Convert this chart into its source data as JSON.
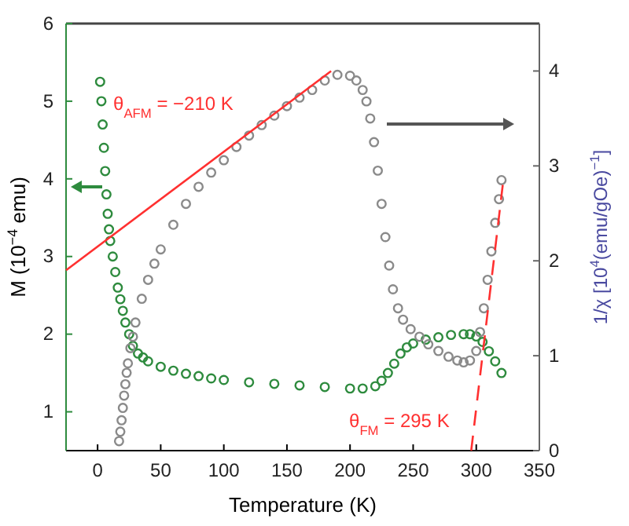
{
  "chart_data": {
    "type": "scatter",
    "xlabel": "Temperature (K)",
    "ylabel": "M (10$^{−4}$ emu)",
    "y2label": "1/χ [10$^{4}$(emu/gOe)$^{−1}$]",
    "xlim": [
      -25,
      350
    ],
    "xticks": [
      0,
      50,
      100,
      150,
      200,
      250,
      300,
      350
    ],
    "ylim": [
      0.5,
      6
    ],
    "yticks": [
      1,
      2,
      3,
      4,
      5,
      6
    ],
    "y2lim": [
      0,
      4.5
    ],
    "y2ticks": [
      0,
      1,
      2,
      3,
      4
    ],
    "marker": "circle",
    "grid": false,
    "annotations": [
      "θ$_{AFM}$ = −210 K",
      "θ$_{FM}$ = 295 K"
    ],
    "series": [
      {
        "color": "#2e8b3e",
        "x": [
          2,
          3,
          4,
          5,
          6,
          7,
          8,
          9,
          10,
          12,
          14,
          16,
          18,
          20,
          22,
          25,
          28,
          32,
          36,
          40,
          50,
          60,
          70,
          80,
          90,
          100,
          120,
          140,
          160,
          180,
          200,
          210,
          220,
          225,
          230,
          235,
          240,
          245,
          250,
          260,
          270,
          280,
          290,
          295,
          300,
          305,
          310,
          315,
          320
        ],
        "values": [
          5.25,
          5.0,
          4.7,
          4.4,
          4.1,
          3.8,
          3.55,
          3.35,
          3.2,
          3.0,
          2.8,
          2.6,
          2.45,
          2.3,
          2.15,
          2.0,
          1.85,
          1.75,
          1.7,
          1.65,
          1.58,
          1.53,
          1.49,
          1.46,
          1.43,
          1.41,
          1.38,
          1.36,
          1.34,
          1.32,
          1.3,
          1.3,
          1.33,
          1.4,
          1.5,
          1.62,
          1.75,
          1.83,
          1.88,
          1.93,
          1.96,
          1.99,
          2.0,
          2.0,
          1.97,
          1.9,
          1.78,
          1.65,
          1.5
        ]
      },
      {
        "color": "#8a8a8a",
        "axis": "y2",
        "x": [
          17,
          18,
          19,
          20,
          21,
          22,
          23,
          24,
          26,
          28,
          30,
          35,
          40,
          45,
          50,
          60,
          70,
          80,
          90,
          100,
          110,
          120,
          130,
          140,
          150,
          160,
          170,
          180,
          190,
          200,
          205,
          210,
          213,
          216,
          219,
          222,
          225,
          228,
          231,
          234,
          238,
          242,
          248,
          255,
          262,
          270,
          278,
          285,
          290,
          295,
          300,
          303,
          306,
          309,
          312,
          315,
          318,
          320
        ],
        "values": [
          0.1,
          0.2,
          0.32,
          0.45,
          0.58,
          0.7,
          0.82,
          0.92,
          1.08,
          1.2,
          1.35,
          1.6,
          1.8,
          1.97,
          2.12,
          2.38,
          2.6,
          2.78,
          2.93,
          3.06,
          3.2,
          3.32,
          3.43,
          3.53,
          3.63,
          3.72,
          3.8,
          3.9,
          3.96,
          3.95,
          3.9,
          3.8,
          3.68,
          3.5,
          3.25,
          2.95,
          2.6,
          2.25,
          1.95,
          1.7,
          1.5,
          1.38,
          1.28,
          1.2,
          1.12,
          1.05,
          0.99,
          0.95,
          0.93,
          0.95,
          1.05,
          1.25,
          1.5,
          1.8,
          2.1,
          2.4,
          2.65,
          2.85
        ]
      },
      {
        "type": "line",
        "color": "#ff3030",
        "axis": "y2",
        "marker": "none",
        "line_style": "solid",
        "x": [
          -25,
          185
        ],
        "values": [
          1.9,
          4.0
        ]
      },
      {
        "type": "line",
        "color": "#ff3030",
        "axis": "y2",
        "marker": "none",
        "line_style": "dashed",
        "x": [
          296,
          321
        ],
        "values": [
          0,
          2.8
        ]
      }
    ]
  }
}
